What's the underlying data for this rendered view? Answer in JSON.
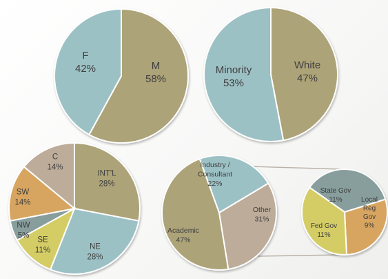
{
  "chart_data": [
    {
      "type": "pie",
      "slices": [
        {
          "label": "M",
          "value": 58,
          "value_label": "58%",
          "color": "#ADA378"
        },
        {
          "label": "F",
          "value": 42,
          "value_label": "42%",
          "color": "#9CC1C4"
        }
      ]
    },
    {
      "type": "pie",
      "slices": [
        {
          "label": "White",
          "value": 47,
          "value_label": "47%",
          "color": "#ADA378"
        },
        {
          "label": "Minority",
          "value": 53,
          "value_label": "53%",
          "color": "#9CC1C4"
        }
      ]
    },
    {
      "type": "pie",
      "slices": [
        {
          "label": "INT'L",
          "value": 28,
          "value_label": "28%",
          "color": "#ADA378"
        },
        {
          "label": "NE",
          "value": 28,
          "value_label": "28%",
          "color": "#9CC1C4"
        },
        {
          "label": "SE",
          "value": 11,
          "value_label": "11%",
          "color": "#D4CD65"
        },
        {
          "label": "NW",
          "value": 5,
          "value_label": "5%",
          "color": "#879E9C"
        },
        {
          "label": "SW",
          "value": 14,
          "value_label": "14%",
          "color": "#D7A560"
        },
        {
          "label": "C",
          "value": 14,
          "value_label": "14%",
          "color": "#BDAC9A"
        }
      ]
    },
    {
      "type": "pie",
      "slices": [
        {
          "label": "Industry / Consultant",
          "value": 22,
          "value_label": "22%",
          "color": "#9CC1C4"
        },
        {
          "label": "Other",
          "value": 31,
          "value_label": "31%",
          "color": "#BDAC9A"
        },
        {
          "label": "Academic",
          "value": 47,
          "value_label": "47%",
          "color": "#ADA378"
        }
      ]
    },
    {
      "type": "pie",
      "slices": [
        {
          "label": "State Gov",
          "value": 11,
          "value_label": "11%",
          "color": "#879E9C"
        },
        {
          "label": "Local Reg Gov",
          "value": 9,
          "value_label": "9%",
          "color": "#D7A560"
        },
        {
          "label": "Fed Gov",
          "value": 11,
          "value_label": "11%",
          "color": "#D4CD65"
        }
      ]
    }
  ]
}
